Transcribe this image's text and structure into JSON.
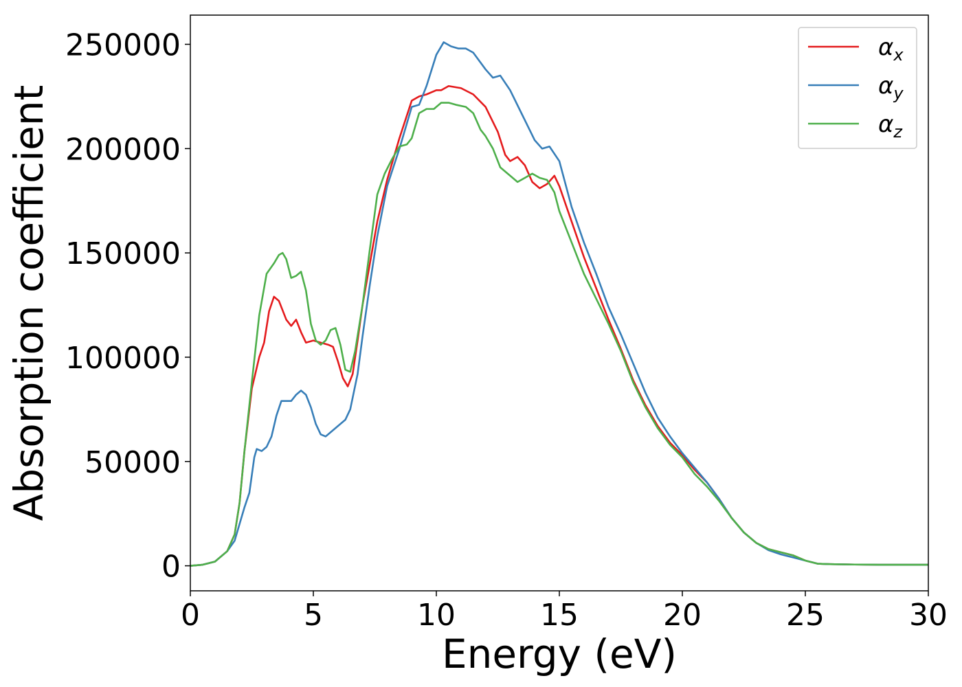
{
  "chart_data": {
    "type": "line",
    "xlabel": "Energy (eV)",
    "ylabel": "Absorption coefficient",
    "xlim": [
      0,
      30
    ],
    "ylim": [
      -12000,
      264000
    ],
    "x_ticks": [
      "0",
      "5",
      "10",
      "15",
      "20",
      "25",
      "30"
    ],
    "y_ticks": [
      "0",
      "50000",
      "100000",
      "150000",
      "200000",
      "250000"
    ],
    "grid": false,
    "legend_position": "top-right",
    "series": [
      {
        "name": "αx",
        "symbol": "α",
        "subscript": "x",
        "color": "#e41a1c",
        "points": [
          [
            0,
            0
          ],
          [
            0.5,
            500
          ],
          [
            1,
            2000
          ],
          [
            1.5,
            7000
          ],
          [
            1.8,
            15000
          ],
          [
            2,
            30000
          ],
          [
            2.2,
            55000
          ],
          [
            2.5,
            85000
          ],
          [
            2.8,
            100000
          ],
          [
            3,
            107000
          ],
          [
            3.2,
            122000
          ],
          [
            3.4,
            129000
          ],
          [
            3.6,
            127000
          ],
          [
            3.9,
            118000
          ],
          [
            4.1,
            115000
          ],
          [
            4.3,
            118000
          ],
          [
            4.5,
            112000
          ],
          [
            4.7,
            107000
          ],
          [
            5,
            108000
          ],
          [
            5.3,
            107000
          ],
          [
            5.6,
            106000
          ],
          [
            5.8,
            105000
          ],
          [
            6,
            98000
          ],
          [
            6.2,
            90000
          ],
          [
            6.4,
            86000
          ],
          [
            6.6,
            92000
          ],
          [
            6.8,
            108000
          ],
          [
            7,
            125000
          ],
          [
            7.3,
            145000
          ],
          [
            7.6,
            165000
          ],
          [
            8,
            185000
          ],
          [
            8.5,
            205000
          ],
          [
            9,
            223000
          ],
          [
            9.3,
            225000
          ],
          [
            9.6,
            226000
          ],
          [
            10,
            228000
          ],
          [
            10.2,
            228000
          ],
          [
            10.5,
            230000
          ],
          [
            11,
            229000
          ],
          [
            11.5,
            226000
          ],
          [
            12,
            220000
          ],
          [
            12.5,
            208000
          ],
          [
            12.8,
            197000
          ],
          [
            13,
            194000
          ],
          [
            13.3,
            196000
          ],
          [
            13.6,
            192000
          ],
          [
            13.9,
            184000
          ],
          [
            14.2,
            181000
          ],
          [
            14.5,
            183000
          ],
          [
            14.8,
            187000
          ],
          [
            15,
            182000
          ],
          [
            15.5,
            165000
          ],
          [
            16,
            148000
          ],
          [
            16.5,
            133000
          ],
          [
            17,
            118000
          ],
          [
            17.5,
            104000
          ],
          [
            18,
            89000
          ],
          [
            18.5,
            77000
          ],
          [
            19,
            67000
          ],
          [
            19.5,
            59000
          ],
          [
            20,
            53000
          ],
          [
            20.5,
            46000
          ],
          [
            21,
            40000
          ],
          [
            21.5,
            32000
          ],
          [
            22,
            23000
          ],
          [
            22.5,
            16000
          ],
          [
            23,
            11000
          ],
          [
            23.5,
            8000
          ],
          [
            24,
            6500
          ],
          [
            24.5,
            5000
          ],
          [
            25,
            2500
          ],
          [
            25.5,
            1000
          ],
          [
            26,
            800
          ],
          [
            27,
            600
          ],
          [
            28,
            500
          ],
          [
            30,
            500
          ]
        ]
      },
      {
        "name": "αy",
        "symbol": "α",
        "subscript": "y",
        "color": "#377eb8",
        "points": [
          [
            0,
            0
          ],
          [
            0.5,
            500
          ],
          [
            1,
            2000
          ],
          [
            1.5,
            7000
          ],
          [
            1.8,
            12000
          ],
          [
            2,
            20000
          ],
          [
            2.2,
            28000
          ],
          [
            2.4,
            35000
          ],
          [
            2.6,
            52000
          ],
          [
            2.7,
            56000
          ],
          [
            2.9,
            55000
          ],
          [
            3.1,
            57000
          ],
          [
            3.3,
            62000
          ],
          [
            3.5,
            72000
          ],
          [
            3.7,
            79000
          ],
          [
            3.9,
            79000
          ],
          [
            4.1,
            79000
          ],
          [
            4.3,
            82000
          ],
          [
            4.5,
            84000
          ],
          [
            4.7,
            82000
          ],
          [
            4.9,
            76000
          ],
          [
            5.1,
            68000
          ],
          [
            5.3,
            63000
          ],
          [
            5.5,
            62000
          ],
          [
            5.7,
            64000
          ],
          [
            6,
            67000
          ],
          [
            6.3,
            70000
          ],
          [
            6.5,
            75000
          ],
          [
            6.8,
            92000
          ],
          [
            7,
            110000
          ],
          [
            7.3,
            135000
          ],
          [
            7.6,
            158000
          ],
          [
            8,
            182000
          ],
          [
            8.5,
            200000
          ],
          [
            9,
            220000
          ],
          [
            9.3,
            221000
          ],
          [
            9.6,
            230000
          ],
          [
            10,
            245000
          ],
          [
            10.3,
            251000
          ],
          [
            10.6,
            249000
          ],
          [
            10.9,
            248000
          ],
          [
            11.2,
            248000
          ],
          [
            11.5,
            246000
          ],
          [
            12,
            238000
          ],
          [
            12.3,
            234000
          ],
          [
            12.6,
            235000
          ],
          [
            13,
            228000
          ],
          [
            13.5,
            216000
          ],
          [
            14,
            204000
          ],
          [
            14.3,
            200000
          ],
          [
            14.6,
            201000
          ],
          [
            15,
            194000
          ],
          [
            15.5,
            172000
          ],
          [
            16,
            155000
          ],
          [
            16.5,
            140000
          ],
          [
            17,
            124000
          ],
          [
            17.5,
            111000
          ],
          [
            18,
            97000
          ],
          [
            18.5,
            83000
          ],
          [
            19,
            71000
          ],
          [
            19.5,
            62000
          ],
          [
            20,
            54000
          ],
          [
            20.5,
            47000
          ],
          [
            21,
            40000
          ],
          [
            21.5,
            32000
          ],
          [
            22,
            23000
          ],
          [
            22.5,
            16000
          ],
          [
            23,
            11000
          ],
          [
            23.5,
            7500
          ],
          [
            24,
            5500
          ],
          [
            24.5,
            4000
          ],
          [
            25,
            2500
          ],
          [
            25.5,
            1000
          ],
          [
            26,
            800
          ],
          [
            27,
            600
          ],
          [
            28,
            500
          ],
          [
            30,
            500
          ]
        ]
      },
      {
        "name": "αz",
        "symbol": "α",
        "subscript": "z",
        "color": "#4daf4a",
        "points": [
          [
            0,
            0
          ],
          [
            0.5,
            500
          ],
          [
            1,
            2000
          ],
          [
            1.5,
            7000
          ],
          [
            1.8,
            15000
          ],
          [
            2,
            30000
          ],
          [
            2.2,
            55000
          ],
          [
            2.5,
            88000
          ],
          [
            2.8,
            120000
          ],
          [
            3.1,
            140000
          ],
          [
            3.4,
            145000
          ],
          [
            3.6,
            149000
          ],
          [
            3.75,
            150000
          ],
          [
            3.9,
            147000
          ],
          [
            4.1,
            138000
          ],
          [
            4.3,
            139000
          ],
          [
            4.5,
            141000
          ],
          [
            4.7,
            132000
          ],
          [
            4.9,
            116000
          ],
          [
            5.1,
            108000
          ],
          [
            5.3,
            106000
          ],
          [
            5.5,
            108000
          ],
          [
            5.7,
            113000
          ],
          [
            5.9,
            114000
          ],
          [
            6.1,
            106000
          ],
          [
            6.3,
            94000
          ],
          [
            6.5,
            93000
          ],
          [
            6.7,
            103000
          ],
          [
            7,
            125000
          ],
          [
            7.3,
            152000
          ],
          [
            7.6,
            178000
          ],
          [
            7.9,
            188000
          ],
          [
            8.2,
            195000
          ],
          [
            8.5,
            201000
          ],
          [
            8.8,
            202000
          ],
          [
            9,
            205000
          ],
          [
            9.3,
            217000
          ],
          [
            9.6,
            219000
          ],
          [
            9.9,
            219000
          ],
          [
            10.2,
            222000
          ],
          [
            10.5,
            222000
          ],
          [
            10.8,
            221000
          ],
          [
            11.2,
            220000
          ],
          [
            11.5,
            217000
          ],
          [
            11.8,
            209000
          ],
          [
            12,
            206000
          ],
          [
            12.3,
            200000
          ],
          [
            12.6,
            191000
          ],
          [
            13,
            187000
          ],
          [
            13.3,
            184000
          ],
          [
            13.6,
            186000
          ],
          [
            13.9,
            188000
          ],
          [
            14.2,
            186000
          ],
          [
            14.5,
            185000
          ],
          [
            14.8,
            179000
          ],
          [
            15,
            170000
          ],
          [
            15.5,
            155000
          ],
          [
            16,
            140000
          ],
          [
            16.5,
            128000
          ],
          [
            17,
            116000
          ],
          [
            17.5,
            103000
          ],
          [
            18,
            88000
          ],
          [
            18.5,
            76000
          ],
          [
            19,
            66000
          ],
          [
            19.5,
            58000
          ],
          [
            20,
            52000
          ],
          [
            20.5,
            44000
          ],
          [
            21,
            38000
          ],
          [
            21.5,
            31000
          ],
          [
            22,
            23000
          ],
          [
            22.5,
            16000
          ],
          [
            23,
            11000
          ],
          [
            23.5,
            8000
          ],
          [
            24,
            6500
          ],
          [
            24.5,
            5000
          ],
          [
            25,
            2500
          ],
          [
            25.5,
            1000
          ],
          [
            26,
            800
          ],
          [
            27,
            600
          ],
          [
            28,
            500
          ],
          [
            30,
            500
          ]
        ]
      }
    ]
  }
}
